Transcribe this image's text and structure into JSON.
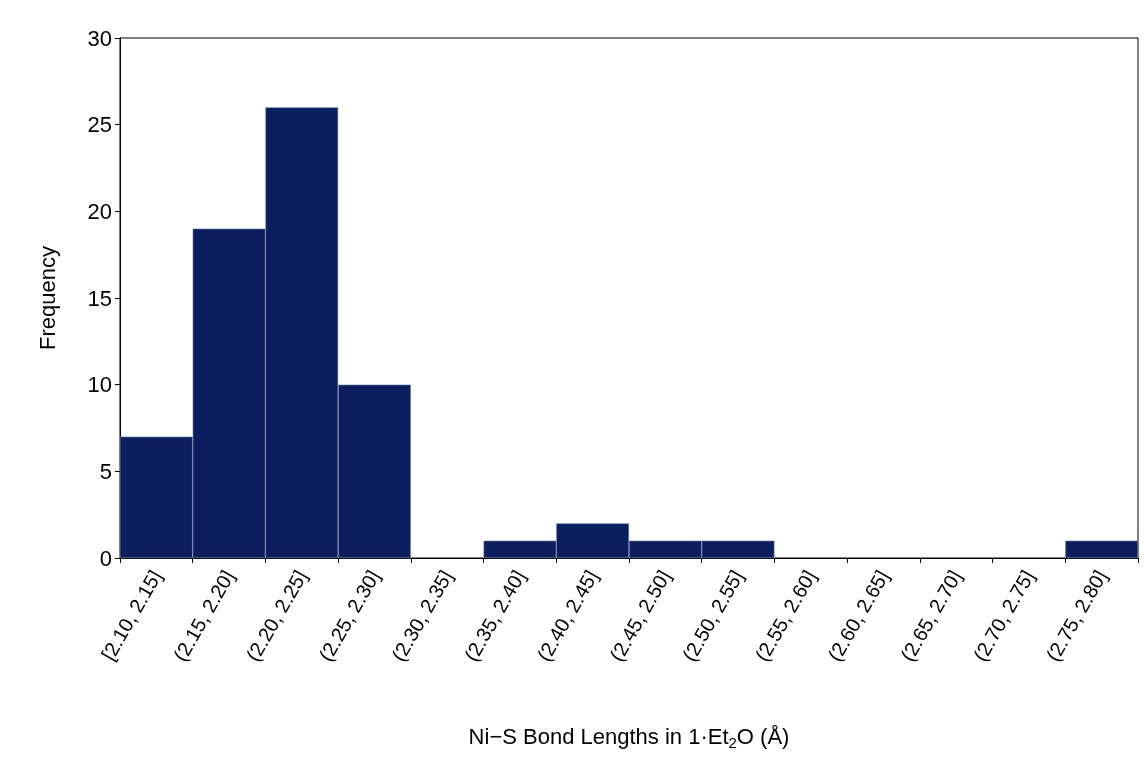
{
  "chart_data": {
    "type": "bar",
    "xlabel": "Ni−S Bond Lengths in 1·Et$_{2}$O (Å)",
    "ylabel": "Frequency",
    "categories": [
      "[2.10, 2.15]",
      "(2.15, 2.20]",
      "(2.20, 2.25]",
      "(2.25, 2.30]",
      "(2.30, 2.35]",
      "(2.35, 2.40]",
      "(2.40, 2.45]",
      "(2.45, 2.50]",
      "(2.50, 2.55]",
      "(2.55, 2.60]",
      "(2.60, 2.65]",
      "(2.65, 2.70]",
      "(2.70, 2.75]",
      "(2.75, 2.80]"
    ],
    "values": [
      7,
      19,
      26,
      10,
      0,
      1,
      2,
      1,
      1,
      0,
      0,
      0,
      0,
      1
    ],
    "color": "#0b1f5e",
    "ylim": [
      0,
      30
    ],
    "yticks": [
      0,
      5,
      10,
      15,
      20,
      25,
      30
    ],
    "grid": false
  }
}
